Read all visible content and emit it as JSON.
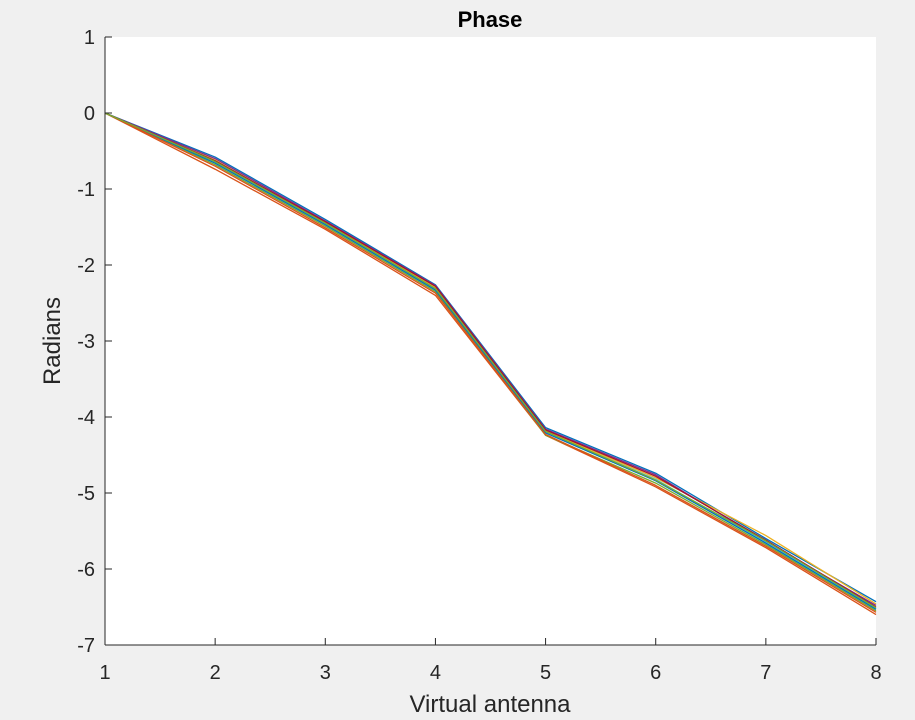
{
  "chart_data": {
    "type": "line",
    "title": "Phase",
    "xlabel": "Virtual antenna",
    "ylabel": "Radians",
    "xlim": [
      1,
      8
    ],
    "ylim": [
      -7,
      1
    ],
    "x": [
      1,
      2,
      3,
      4,
      5,
      6,
      7,
      8
    ],
    "xticks": [
      "1",
      "2",
      "3",
      "4",
      "5",
      "6",
      "7",
      "8"
    ],
    "yticks": [
      "1",
      "0",
      "-1",
      "-2",
      "-3",
      "-4",
      "-5",
      "-6",
      "-7"
    ],
    "grid": false,
    "legend": "none",
    "series": [
      {
        "color": "#0072BD",
        "values": [
          0,
          -0.58,
          -1.4,
          -2.26,
          -4.14,
          -4.74,
          -5.6,
          -6.43
        ]
      },
      {
        "color": "#D95319",
        "values": [
          0,
          -0.74,
          -1.53,
          -2.4,
          -4.24,
          -4.92,
          -5.72,
          -6.6
        ]
      },
      {
        "color": "#EDB120",
        "values": [
          0,
          -0.62,
          -1.44,
          -2.3,
          -4.18,
          -4.8,
          -5.56,
          -6.46
        ]
      },
      {
        "color": "#7E2F8E",
        "values": [
          0,
          -0.6,
          -1.42,
          -2.27,
          -4.16,
          -4.76,
          -5.64,
          -6.48
        ]
      },
      {
        "color": "#77AC30",
        "values": [
          0,
          -0.68,
          -1.49,
          -2.35,
          -4.24,
          -4.87,
          -5.68,
          -6.55
        ]
      },
      {
        "color": "#4DBEEE",
        "values": [
          0,
          -0.65,
          -1.46,
          -2.32,
          -4.2,
          -4.82,
          -5.65,
          -6.52
        ]
      },
      {
        "color": "#A2142F",
        "values": [
          0,
          -0.63,
          -1.43,
          -2.28,
          -4.17,
          -4.78,
          -5.62,
          -6.5
        ]
      },
      {
        "color": "#0072BD",
        "values": [
          0,
          -0.66,
          -1.47,
          -2.33,
          -4.21,
          -4.84,
          -5.66,
          -6.53
        ]
      },
      {
        "color": "#D95319",
        "values": [
          0,
          -0.7,
          -1.51,
          -2.37,
          -4.23,
          -4.9,
          -5.7,
          -6.57
        ]
      },
      {
        "color": "#77AC30",
        "values": [
          0,
          -0.64,
          -1.45,
          -2.31,
          -4.19,
          -4.83,
          -5.63,
          -6.51
        ]
      }
    ]
  }
}
